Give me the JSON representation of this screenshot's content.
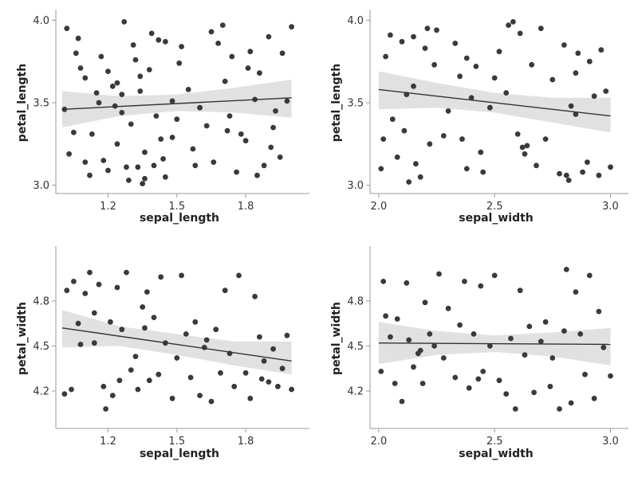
{
  "chart_data": [
    {
      "type": "scatter",
      "xlabel": "sepal_length",
      "ylabel": "petal_length",
      "xlim": [
        1.0,
        2.05
      ],
      "ylim": [
        2.95,
        4.05
      ],
      "xticks": [
        1.2,
        1.5,
        1.8
      ],
      "yticks": [
        3.0,
        3.5,
        4.0
      ],
      "xtick_labels": [
        "1.2",
        "1.5",
        "1.8"
      ],
      "ytick_labels": [
        "3.0",
        "3.5",
        "4.0"
      ],
      "grid": false,
      "regression": {
        "x": [
          1.0,
          2.0
        ],
        "y": [
          3.46,
          3.53
        ]
      },
      "confidence_band": {
        "x": [
          1.0,
          1.25,
          1.5,
          1.75,
          2.0
        ],
        "lower": [
          3.35,
          3.42,
          3.45,
          3.44,
          3.41
        ],
        "upper": [
          3.57,
          3.54,
          3.55,
          3.59,
          3.64
        ]
      },
      "points": {
        "x": [
          1.01,
          1.02,
          1.03,
          1.05,
          1.06,
          1.07,
          1.08,
          1.1,
          1.12,
          1.13,
          1.15,
          1.17,
          1.18,
          1.2,
          1.2,
          1.22,
          1.23,
          1.24,
          1.26,
          1.27,
          1.28,
          1.29,
          1.3,
          1.31,
          1.32,
          1.33,
          1.34,
          1.35,
          1.36,
          1.38,
          1.39,
          1.4,
          1.41,
          1.42,
          1.43,
          1.44,
          1.45,
          1.48,
          1.5,
          1.51,
          1.52,
          1.55,
          1.57,
          1.6,
          1.63,
          1.65,
          1.66,
          1.68,
          1.7,
          1.71,
          1.72,
          1.73,
          1.74,
          1.76,
          1.78,
          1.8,
          1.82,
          1.84,
          1.85,
          1.86,
          1.88,
          1.9,
          1.91,
          1.93,
          1.95,
          1.96,
          1.98,
          2.0,
          1.36,
          1.16,
          1.1,
          1.48,
          1.34,
          1.58,
          1.26,
          1.81,
          1.45,
          1.24,
          1.92
        ],
        "y": [
          3.46,
          3.95,
          3.19,
          3.32,
          3.8,
          3.89,
          3.71,
          3.14,
          3.06,
          3.31,
          3.56,
          3.78,
          3.15,
          3.69,
          3.09,
          3.6,
          3.48,
          3.25,
          3.55,
          3.99,
          3.11,
          3.03,
          3.37,
          3.85,
          3.76,
          3.11,
          3.66,
          3.01,
          3.2,
          3.7,
          3.92,
          3.12,
          3.42,
          3.88,
          3.28,
          3.16,
          3.05,
          3.51,
          3.4,
          3.74,
          3.84,
          3.58,
          3.22,
          3.47,
          3.36,
          3.93,
          3.14,
          3.86,
          3.97,
          3.63,
          3.33,
          3.42,
          3.78,
          3.08,
          3.31,
          3.27,
          3.81,
          3.52,
          3.06,
          3.68,
          3.12,
          3.9,
          3.23,
          3.45,
          3.17,
          3.8,
          3.51,
          3.96,
          3.04,
          3.5,
          3.65,
          3.29,
          3.57,
          3.12,
          3.44,
          3.71,
          3.87,
          3.62,
          3.35
        ]
      }
    },
    {
      "type": "scatter",
      "xlabel": "sepal_width",
      "ylabel": "petal_length",
      "xlim": [
        1.99,
        3.05
      ],
      "ylim": [
        2.95,
        4.05
      ],
      "xticks": [
        2.0,
        2.5,
        3.0
      ],
      "yticks": [
        3.0,
        3.5,
        4.0
      ],
      "xtick_labels": [
        "2.0",
        "2.5",
        "3.0"
      ],
      "ytick_labels": [
        "3.0",
        "3.5",
        "4.0"
      ],
      "grid": false,
      "regression": {
        "x": [
          2.0,
          3.0
        ],
        "y": [
          3.58,
          3.42
        ]
      },
      "confidence_band": {
        "x": [
          2.0,
          2.25,
          2.5,
          2.75,
          3.0
        ],
        "lower": [
          3.46,
          3.47,
          3.44,
          3.38,
          3.32
        ],
        "upper": [
          3.69,
          3.62,
          3.56,
          3.53,
          3.53
        ]
      },
      "points": {
        "x": [
          2.01,
          2.02,
          2.03,
          2.05,
          2.06,
          2.08,
          2.1,
          2.11,
          2.12,
          2.13,
          2.15,
          2.16,
          2.18,
          2.2,
          2.21,
          2.22,
          2.24,
          2.25,
          2.28,
          2.3,
          2.33,
          2.35,
          2.36,
          2.38,
          2.4,
          2.42,
          2.44,
          2.45,
          2.48,
          2.5,
          2.52,
          2.55,
          2.56,
          2.58,
          2.6,
          2.61,
          2.63,
          2.64,
          2.66,
          2.68,
          2.7,
          2.72,
          2.75,
          2.78,
          2.8,
          2.81,
          2.82,
          2.83,
          2.85,
          2.86,
          2.88,
          2.9,
          2.91,
          2.93,
          2.95,
          2.96,
          2.98,
          3.0,
          2.15,
          2.62,
          2.38,
          2.85
        ],
        "y": [
          3.1,
          3.28,
          3.78,
          3.91,
          3.4,
          3.17,
          3.87,
          3.33,
          3.55,
          3.02,
          3.9,
          3.13,
          3.05,
          3.83,
          3.95,
          3.25,
          3.73,
          3.94,
          3.3,
          3.45,
          3.86,
          3.66,
          3.28,
          3.77,
          3.53,
          3.72,
          3.2,
          3.08,
          3.47,
          3.65,
          3.81,
          3.56,
          3.97,
          3.99,
          3.31,
          3.92,
          3.19,
          3.24,
          3.73,
          3.12,
          3.95,
          3.28,
          3.64,
          3.07,
          3.85,
          3.06,
          3.03,
          3.48,
          3.68,
          3.8,
          3.08,
          3.14,
          3.75,
          3.54,
          3.06,
          3.82,
          3.57,
          3.11,
          3.6,
          3.23,
          3.1,
          3.43
        ]
      }
    },
    {
      "type": "scatter",
      "xlabel": "sepal_length",
      "ylabel": "petal_width",
      "xlim": [
        1.0,
        2.05
      ],
      "ylim": [
        3.95,
        5.15
      ],
      "xticks": [
        1.2,
        1.5,
        1.8
      ],
      "yticks": [
        4.2,
        4.5,
        4.8
      ],
      "xtick_labels": [
        "1.2",
        "1.5",
        "1.8"
      ],
      "ytick_labels": [
        "4.2",
        "4.5",
        "4.8"
      ],
      "grid": false,
      "regression": {
        "x": [
          1.0,
          2.0
        ],
        "y": [
          4.62,
          4.4
        ]
      },
      "confidence_band": {
        "x": [
          1.0,
          1.25,
          1.5,
          1.75,
          2.0
        ],
        "lower": [
          4.49,
          4.5,
          4.44,
          4.37,
          4.31
        ],
        "upper": [
          4.74,
          4.63,
          4.58,
          4.53,
          4.53
        ]
      },
      "points": {
        "x": [
          1.01,
          1.02,
          1.04,
          1.05,
          1.07,
          1.08,
          1.1,
          1.12,
          1.14,
          1.16,
          1.18,
          1.19,
          1.21,
          1.22,
          1.24,
          1.25,
          1.26,
          1.28,
          1.3,
          1.32,
          1.33,
          1.35,
          1.37,
          1.38,
          1.4,
          1.42,
          1.43,
          1.45,
          1.48,
          1.5,
          1.52,
          1.54,
          1.56,
          1.58,
          1.6,
          1.63,
          1.65,
          1.67,
          1.69,
          1.71,
          1.73,
          1.75,
          1.77,
          1.8,
          1.82,
          1.84,
          1.86,
          1.88,
          1.9,
          1.92,
          1.94,
          1.96,
          1.98,
          2.0,
          1.14,
          1.36,
          1.62,
          1.87
        ],
        "y": [
          4.18,
          4.87,
          4.21,
          4.93,
          4.65,
          4.51,
          4.85,
          4.99,
          4.52,
          4.91,
          4.23,
          4.08,
          4.66,
          4.17,
          4.89,
          4.27,
          4.61,
          4.99,
          4.34,
          4.43,
          4.21,
          4.76,
          4.86,
          4.27,
          4.69,
          4.31,
          4.96,
          4.52,
          4.15,
          4.42,
          4.97,
          4.58,
          4.29,
          4.66,
          4.17,
          4.54,
          4.13,
          4.61,
          4.32,
          4.87,
          4.45,
          4.23,
          4.97,
          4.32,
          4.15,
          4.83,
          4.56,
          4.4,
          4.26,
          4.48,
          4.23,
          4.35,
          4.57,
          4.21,
          4.72,
          4.62,
          4.49,
          4.28
        ]
      }
    },
    {
      "type": "scatter",
      "xlabel": "sepal_width",
      "ylabel": "petal_width",
      "xlim": [
        1.99,
        3.05
      ],
      "ylim": [
        3.95,
        5.15
      ],
      "xticks": [
        2.0,
        2.5,
        3.0
      ],
      "yticks": [
        4.2,
        4.5,
        4.8
      ],
      "xtick_labels": [
        "2.0",
        "2.5",
        "3.0"
      ],
      "ytick_labels": [
        "4.2",
        "4.5",
        "4.8"
      ],
      "grid": false,
      "regression": {
        "x": [
          2.0,
          3.0
        ],
        "y": [
          4.52,
          4.51
        ]
      },
      "confidence_band": {
        "x": [
          2.0,
          2.25,
          2.5,
          2.75,
          3.0
        ],
        "lower": [
          4.38,
          4.44,
          4.46,
          4.43,
          4.37
        ],
        "upper": [
          4.66,
          4.6,
          4.57,
          4.59,
          4.62
        ]
      },
      "points": {
        "x": [
          2.01,
          2.02,
          2.03,
          2.05,
          2.07,
          2.08,
          2.1,
          2.12,
          2.13,
          2.15,
          2.17,
          2.19,
          2.2,
          2.22,
          2.24,
          2.26,
          2.28,
          2.3,
          2.33,
          2.35,
          2.37,
          2.39,
          2.41,
          2.43,
          2.45,
          2.48,
          2.5,
          2.52,
          2.55,
          2.57,
          2.59,
          2.61,
          2.63,
          2.65,
          2.67,
          2.7,
          2.72,
          2.75,
          2.78,
          2.8,
          2.81,
          2.83,
          2.85,
          2.87,
          2.89,
          2.91,
          2.93,
          2.95,
          2.97,
          3.0,
          2.44,
          2.74,
          2.18
        ],
        "y": [
          4.33,
          4.93,
          4.7,
          4.56,
          4.25,
          4.68,
          4.13,
          4.92,
          4.54,
          4.36,
          4.45,
          4.25,
          4.79,
          4.58,
          4.5,
          4.98,
          4.42,
          4.75,
          4.29,
          4.64,
          4.93,
          4.22,
          4.58,
          4.28,
          4.33,
          4.5,
          4.97,
          4.27,
          4.18,
          4.55,
          4.08,
          4.87,
          4.44,
          4.63,
          4.19,
          4.53,
          4.66,
          4.42,
          4.08,
          4.6,
          5.01,
          4.12,
          4.86,
          4.58,
          4.31,
          4.97,
          4.15,
          4.73,
          4.49,
          4.3,
          4.9,
          4.23,
          4.47
        ]
      }
    }
  ]
}
